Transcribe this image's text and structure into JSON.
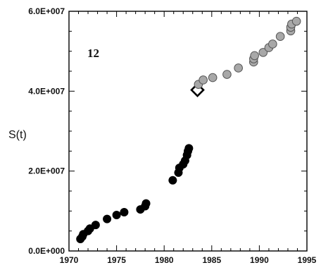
{
  "chart_data": {
    "type": "scatter",
    "ylabel": "S(t)",
    "xlabel": "",
    "annotation": "12",
    "xlim": [
      1970,
      1995
    ],
    "ylim": [
      0,
      60000000
    ],
    "x_ticks": [
      "1970",
      "1975",
      "1980",
      "1985",
      "1990",
      "1995"
    ],
    "x_tick_values": [
      1970,
      1975,
      1980,
      1985,
      1990,
      1995
    ],
    "y_ticks": [
      "0.0E+000",
      "2.0E+007",
      "4.0E+007",
      "6.0E+007"
    ],
    "y_tick_values": [
      0,
      20000000,
      40000000,
      60000000
    ],
    "grid": false,
    "series": [
      {
        "marker": "filled-circle",
        "color": "#000000",
        "points": [
          [
            1971.2,
            3000000
          ],
          [
            1971.4,
            3600000
          ],
          [
            1971.5,
            4200000
          ],
          [
            1972.0,
            5000000
          ],
          [
            1972.2,
            5600000
          ],
          [
            1972.8,
            6500000
          ],
          [
            1974.0,
            8000000
          ],
          [
            1975.0,
            9000000
          ],
          [
            1975.8,
            9700000
          ],
          [
            1977.5,
            10400000
          ],
          [
            1978.0,
            11200000
          ],
          [
            1978.1,
            11900000
          ],
          [
            1980.9,
            17700000
          ],
          [
            1981.5,
            19600000
          ],
          [
            1981.6,
            20800000
          ],
          [
            1982.0,
            21700000
          ],
          [
            1982.2,
            22600000
          ],
          [
            1982.4,
            24000000
          ],
          [
            1982.5,
            25000000
          ],
          [
            1982.6,
            25700000
          ]
        ]
      },
      {
        "marker": "open-diamond",
        "color": "#000000",
        "points": [
          [
            1983.5,
            40300000
          ]
        ]
      },
      {
        "marker": "gray-circle",
        "color": "#a8a8a8",
        "points": [
          [
            1983.6,
            41700000
          ],
          [
            1984.1,
            42800000
          ],
          [
            1985.1,
            43400000
          ],
          [
            1986.6,
            44200000
          ],
          [
            1987.8,
            45800000
          ],
          [
            1989.4,
            47300000
          ],
          [
            1989.4,
            48100000
          ],
          [
            1989.5,
            48900000
          ],
          [
            1990.4,
            49700000
          ],
          [
            1991.0,
            50900000
          ],
          [
            1991.4,
            51800000
          ],
          [
            1992.2,
            53700000
          ],
          [
            1993.3,
            55100000
          ],
          [
            1993.3,
            56000000
          ],
          [
            1993.4,
            56800000
          ],
          [
            1993.9,
            57500000
          ]
        ]
      }
    ]
  }
}
